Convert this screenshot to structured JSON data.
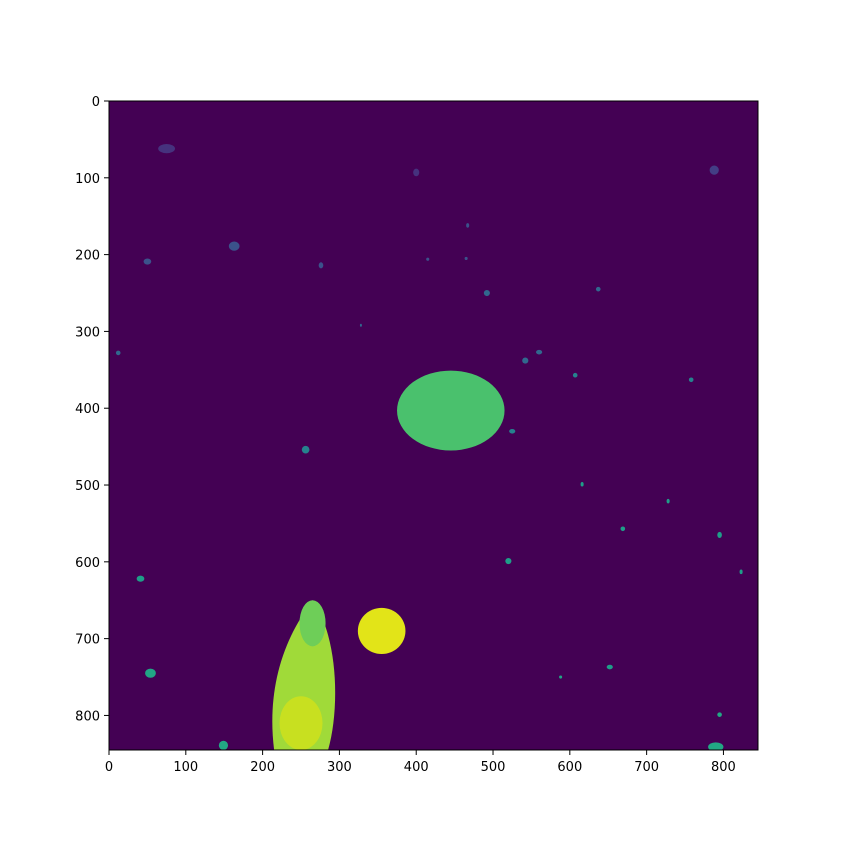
{
  "chart_data": {
    "type": "heatmap",
    "title": "",
    "xlabel": "",
    "ylabel": "",
    "image_size": [
      845,
      845
    ],
    "xlim": [
      0,
      845
    ],
    "ylim": [
      845,
      0
    ],
    "x_ticks": [
      0,
      100,
      200,
      300,
      400,
      500,
      600,
      700,
      800
    ],
    "y_ticks": [
      0,
      100,
      200,
      300,
      400,
      500,
      600,
      700,
      800
    ],
    "x_tick_labels": [
      "0",
      "100",
      "200",
      "300",
      "400",
      "500",
      "600",
      "700",
      "800"
    ],
    "y_tick_labels": [
      "0",
      "100",
      "200",
      "300",
      "400",
      "500",
      "600",
      "700",
      "800"
    ],
    "colormap": "viridis",
    "background_color": "#440154",
    "legend": "none",
    "grid": false,
    "regions": [
      {
        "kind": "blob",
        "center": [
          445,
          403
        ],
        "rx": 70,
        "ry": 52,
        "color": "#4ac16d",
        "label": "large green region"
      },
      {
        "kind": "blob",
        "center": [
          355,
          690
        ],
        "rx": 31,
        "ry": 30,
        "color": "#e2e418",
        "label": "yellow region"
      },
      {
        "kind": "leaf",
        "center": [
          255,
          755
        ],
        "rx": 42,
        "ry": 105,
        "color": "#a0da39",
        "label": "leaf-shaped region"
      },
      {
        "kind": "blob",
        "center": [
          250,
          810
        ],
        "rx": 28,
        "ry": 35,
        "color": "#c8e020"
      },
      {
        "kind": "blob",
        "center": [
          265,
          680
        ],
        "rx": 17,
        "ry": 30,
        "color": "#6ece58"
      },
      {
        "kind": "spot",
        "center": [
          75,
          62
        ],
        "rx": 11,
        "ry": 6,
        "color": "#46327e"
      },
      {
        "kind": "spot",
        "center": [
          400,
          93
        ],
        "rx": 4,
        "ry": 5,
        "color": "#46327e"
      },
      {
        "kind": "spot",
        "center": [
          788,
          90
        ],
        "rx": 6,
        "ry": 6,
        "color": "#433e85"
      },
      {
        "kind": "spot",
        "center": [
          163,
          189
        ],
        "rx": 7,
        "ry": 6,
        "color": "#3b528b"
      },
      {
        "kind": "spot",
        "center": [
          50,
          209
        ],
        "rx": 5,
        "ry": 4,
        "color": "#3b528b"
      },
      {
        "kind": "spot",
        "center": [
          276,
          214
        ],
        "rx": 3,
        "ry": 4,
        "color": "#3b528b"
      },
      {
        "kind": "spot",
        "center": [
          467,
          162
        ],
        "rx": 2,
        "ry": 3,
        "color": "#3b528b"
      },
      {
        "kind": "spot",
        "center": [
          415,
          206
        ],
        "rx": 2,
        "ry": 2,
        "color": "#3b528b"
      },
      {
        "kind": "spot",
        "center": [
          465,
          205
        ],
        "rx": 2,
        "ry": 2,
        "color": "#3b528b"
      },
      {
        "kind": "spot",
        "center": [
          492,
          250
        ],
        "rx": 4,
        "ry": 4,
        "color": "#31688e"
      },
      {
        "kind": "spot",
        "center": [
          637,
          245
        ],
        "rx": 3,
        "ry": 3,
        "color": "#31688e"
      },
      {
        "kind": "spot",
        "center": [
          12,
          328
        ],
        "rx": 3,
        "ry": 3,
        "color": "#31688e"
      },
      {
        "kind": "spot",
        "center": [
          328,
          292
        ],
        "rx": 1,
        "ry": 2,
        "color": "#31688e"
      },
      {
        "kind": "spot",
        "center": [
          542,
          338
        ],
        "rx": 4,
        "ry": 4,
        "color": "#31688e"
      },
      {
        "kind": "spot",
        "center": [
          560,
          327
        ],
        "rx": 4,
        "ry": 3,
        "color": "#31688e"
      },
      {
        "kind": "spot",
        "center": [
          607,
          357
        ],
        "rx": 3,
        "ry": 3,
        "color": "#26828e"
      },
      {
        "kind": "spot",
        "center": [
          758,
          363
        ],
        "rx": 3,
        "ry": 3,
        "color": "#26828e"
      },
      {
        "kind": "spot",
        "center": [
          525,
          430
        ],
        "rx": 4,
        "ry": 3,
        "color": "#26828e"
      },
      {
        "kind": "spot",
        "center": [
          256,
          454
        ],
        "rx": 5,
        "ry": 5,
        "color": "#26828e"
      },
      {
        "kind": "spot",
        "center": [
          616,
          499
        ],
        "rx": 2,
        "ry": 3,
        "color": "#1f9e89"
      },
      {
        "kind": "spot",
        "center": [
          728,
          521
        ],
        "rx": 2,
        "ry": 3,
        "color": "#1f9e89"
      },
      {
        "kind": "spot",
        "center": [
          669,
          557
        ],
        "rx": 3,
        "ry": 3,
        "color": "#1f9e89"
      },
      {
        "kind": "spot",
        "center": [
          795,
          565
        ],
        "rx": 3,
        "ry": 4,
        "color": "#1f9e89"
      },
      {
        "kind": "spot",
        "center": [
          520,
          599
        ],
        "rx": 4,
        "ry": 4,
        "color": "#1f9e89"
      },
      {
        "kind": "spot",
        "center": [
          823,
          613
        ],
        "rx": 2,
        "ry": 3,
        "color": "#1f9e89"
      },
      {
        "kind": "spot",
        "center": [
          41,
          622
        ],
        "rx": 5,
        "ry": 4,
        "color": "#1f9e89"
      },
      {
        "kind": "spot",
        "center": [
          652,
          737
        ],
        "rx": 4,
        "ry": 3,
        "color": "#1f9e89"
      },
      {
        "kind": "spot",
        "center": [
          54,
          745
        ],
        "rx": 7,
        "ry": 6,
        "color": "#21a685"
      },
      {
        "kind": "spot",
        "center": [
          588,
          750
        ],
        "rx": 2,
        "ry": 2,
        "color": "#21a685"
      },
      {
        "kind": "spot",
        "center": [
          795,
          799
        ],
        "rx": 3,
        "ry": 3,
        "color": "#22a884"
      },
      {
        "kind": "spot",
        "center": [
          149,
          839
        ],
        "rx": 6,
        "ry": 6,
        "color": "#22a884"
      },
      {
        "kind": "spot",
        "center": [
          790,
          841
        ],
        "rx": 10,
        "ry": 6,
        "color": "#22a884"
      }
    ]
  }
}
